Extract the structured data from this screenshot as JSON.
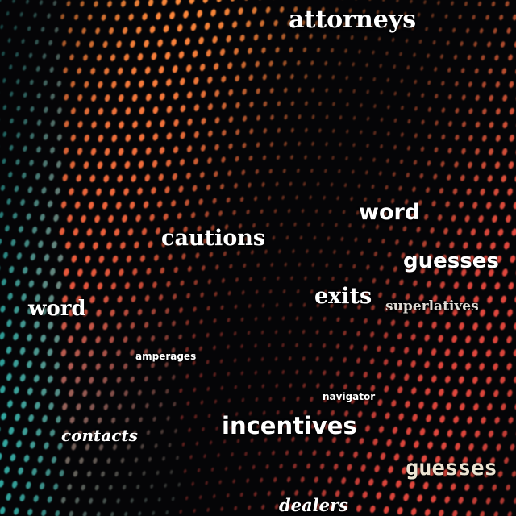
{
  "background": {
    "description_colors": {
      "base": "#050507",
      "warm_dot": "#ff8a3a",
      "red_dot": "#e0463c",
      "teal_dot": "#2fa7a0"
    }
  },
  "words": [
    {
      "id": "attorneys",
      "text": "attorneys"
    },
    {
      "id": "word1",
      "text": "word"
    },
    {
      "id": "cautions",
      "text": "cautions"
    },
    {
      "id": "guesses1",
      "text": "guesses"
    },
    {
      "id": "exits",
      "text": "exits"
    },
    {
      "id": "superlatives",
      "text": "superlatives"
    },
    {
      "id": "word2",
      "text": "word"
    },
    {
      "id": "amperages",
      "text": "amperages"
    },
    {
      "id": "navigator",
      "text": "navigator"
    },
    {
      "id": "incentives",
      "text": "incentives"
    },
    {
      "id": "contacts",
      "text": "contacts"
    },
    {
      "id": "guesses2",
      "text": "guesses"
    },
    {
      "id": "dealers",
      "text": "dealers"
    }
  ]
}
